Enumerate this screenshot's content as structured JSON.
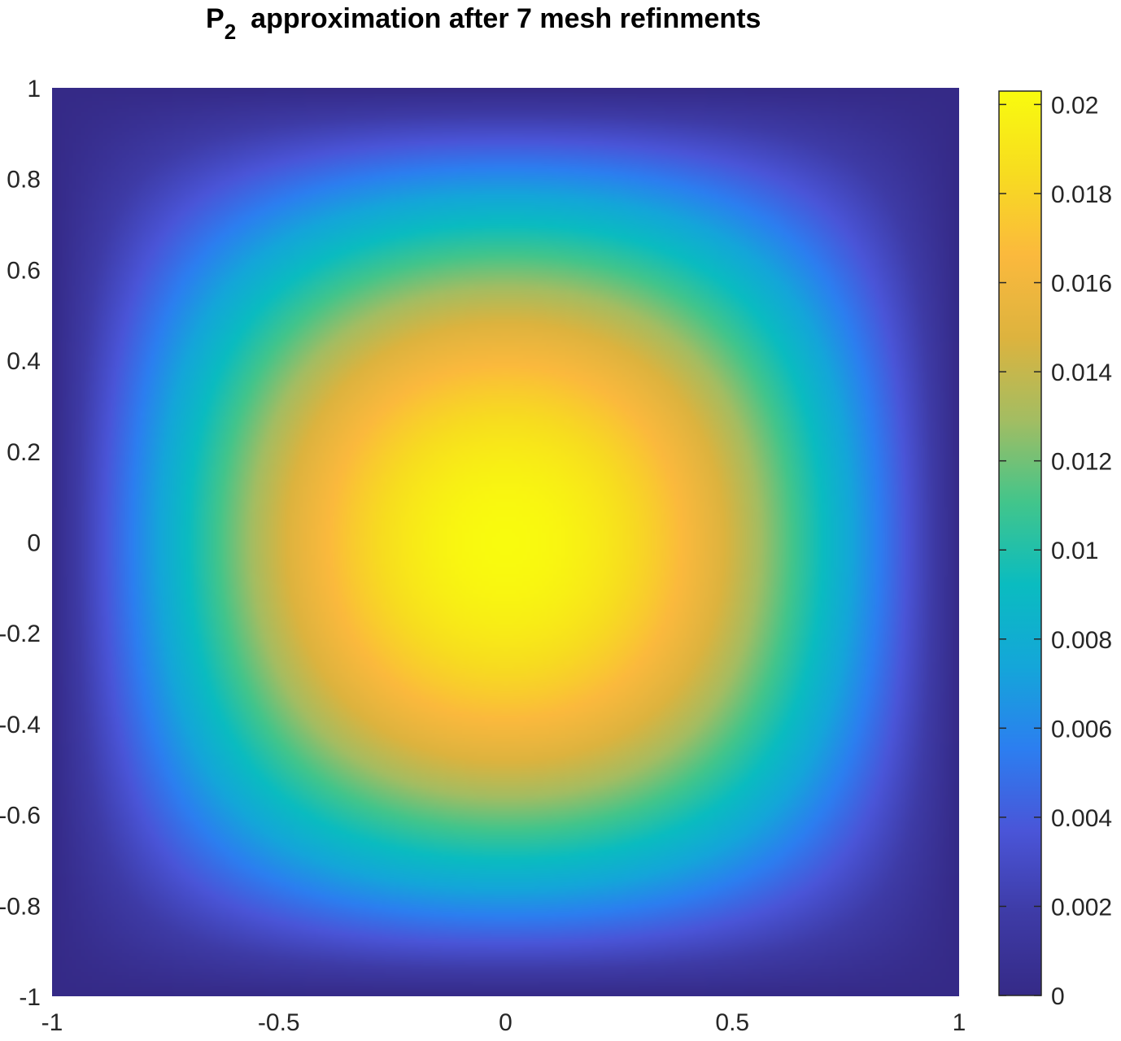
{
  "chart_data": {
    "type": "heatmap",
    "title": {
      "main": "P",
      "subscript": "2",
      "rest": "approximation after 7 mesh refinments"
    },
    "xlabel": "",
    "ylabel": "",
    "xlim": [
      -1,
      1
    ],
    "ylim": [
      -1,
      1
    ],
    "x_ticks": [
      {
        "value": -1,
        "label": "-1"
      },
      {
        "value": -0.5,
        "label": "-0.5"
      },
      {
        "value": 0,
        "label": "0"
      },
      {
        "value": 0.5,
        "label": "0.5"
      },
      {
        "value": 1,
        "label": "1"
      }
    ],
    "y_ticks": [
      {
        "value": 1,
        "label": "1"
      },
      {
        "value": 0.8,
        "label": "0.8"
      },
      {
        "value": 0.6,
        "label": "0.6"
      },
      {
        "value": 0.4,
        "label": "0.4"
      },
      {
        "value": 0.2,
        "label": "0.2"
      },
      {
        "value": 0,
        "label": "0"
      },
      {
        "value": -0.2,
        "label": "-0.2"
      },
      {
        "value": -0.4,
        "label": "-0.4"
      },
      {
        "value": -0.6,
        "label": "-0.6"
      },
      {
        "value": -0.8,
        "label": "-0.8"
      },
      {
        "value": -1,
        "label": "-1"
      }
    ],
    "colorbar": {
      "colormap": "parula",
      "range": [
        0,
        0.0203
      ],
      "ticks": [
        {
          "value": 0,
          "label": "0"
        },
        {
          "value": 0.002,
          "label": "0.002"
        },
        {
          "value": 0.004,
          "label": "0.004"
        },
        {
          "value": 0.006,
          "label": "0.006"
        },
        {
          "value": 0.008,
          "label": "0.008"
        },
        {
          "value": 0.01,
          "label": "0.01"
        },
        {
          "value": 0.012,
          "label": "0.012"
        },
        {
          "value": 0.014,
          "label": "0.014"
        },
        {
          "value": 0.016,
          "label": "0.016"
        },
        {
          "value": 0.018,
          "label": "0.018"
        },
        {
          "value": 0.02,
          "label": "0.02"
        }
      ]
    },
    "field": {
      "peak_value": 0.0203,
      "peak_location": [
        0,
        0
      ],
      "boundary_value": 0,
      "colormap_stops": [
        "#352a87",
        "#3e3ba6",
        "#4a55d8",
        "#2c7ef0",
        "#14a6d9",
        "#0abcc0",
        "#42c58b",
        "#a3bd62",
        "#ddb33e",
        "#fbb93d",
        "#f7dc20",
        "#f9fb0e"
      ]
    },
    "grid": false,
    "legend": "colorbar-right"
  }
}
